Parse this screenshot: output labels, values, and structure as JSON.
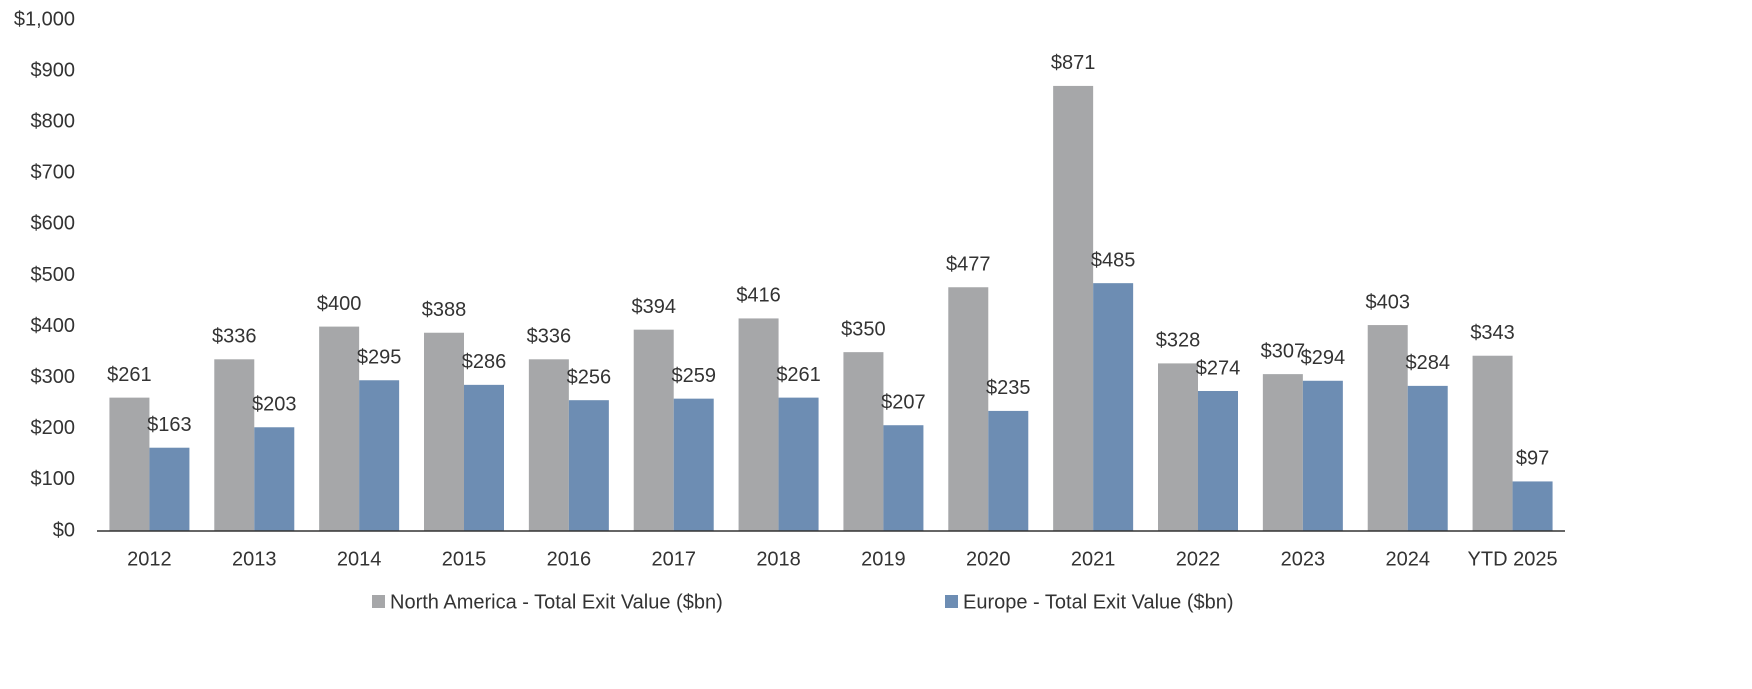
{
  "chart_data": {
    "type": "bar",
    "categories": [
      "2012",
      "2013",
      "2014",
      "2015",
      "2016",
      "2017",
      "2018",
      "2019",
      "2020",
      "2021",
      "2022",
      "2023",
      "2024",
      "YTD 2025"
    ],
    "series": [
      {
        "name": "North America - Total Exit Value ($bn)",
        "color": "#a6a7a9",
        "values": [
          261,
          336,
          400,
          388,
          336,
          394,
          416,
          350,
          477,
          871,
          328,
          307,
          403,
          343
        ],
        "value_labels": [
          "$261",
          "$336",
          "$400",
          "$388",
          "$336",
          "$394",
          "$416",
          "$350",
          "$477",
          "$871",
          "$328",
          "$307",
          "$403",
          "$343"
        ]
      },
      {
        "name": "Europe - Total Exit Value ($bn)",
        "color": "#6d8db3",
        "values": [
          163,
          203,
          295,
          286,
          256,
          259,
          261,
          207,
          235,
          485,
          274,
          294,
          284,
          97
        ],
        "value_labels": [
          "$163",
          "$203",
          "$295",
          "$286",
          "$256",
          "$259",
          "$261",
          "$207",
          "$235",
          "$485",
          "$274",
          "$294",
          "$284",
          "$97"
        ]
      }
    ],
    "ylim": [
      0,
      1000
    ],
    "yticks": [
      {
        "value": 0,
        "label": "$0"
      },
      {
        "value": 100,
        "label": "$100"
      },
      {
        "value": 200,
        "label": "$200"
      },
      {
        "value": 300,
        "label": "$300"
      },
      {
        "value": 400,
        "label": "$400"
      },
      {
        "value": 500,
        "label": "$500"
      },
      {
        "value": 600,
        "label": "$600"
      },
      {
        "value": 700,
        "label": "$700"
      },
      {
        "value": 800,
        "label": "$800"
      },
      {
        "value": 900,
        "label": "$900"
      },
      {
        "value": 1000,
        "label": "$1,000"
      }
    ],
    "grid": false,
    "legend": "bottom"
  }
}
